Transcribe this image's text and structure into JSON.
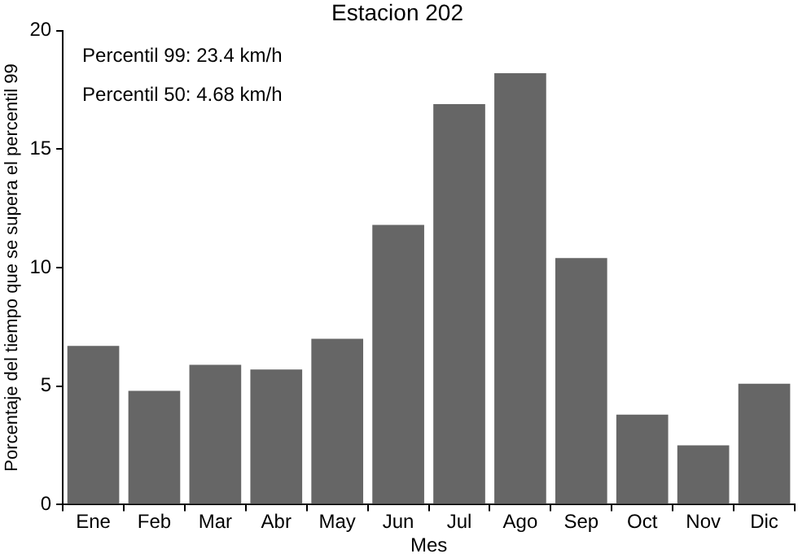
{
  "chart_data": {
    "type": "bar",
    "title": "Estacion 202",
    "xlabel": "Mes",
    "ylabel": "Porcentaje del tiempo que se supera el percentil 99",
    "categories": [
      "Ene",
      "Feb",
      "Mar",
      "Abr",
      "May",
      "Jun",
      "Jul",
      "Ago",
      "Sep",
      "Oct",
      "Nov",
      "Dic"
    ],
    "values": [
      6.7,
      4.8,
      5.9,
      5.7,
      7.0,
      11.8,
      16.9,
      18.2,
      10.4,
      3.8,
      2.5,
      5.1
    ],
    "color": "#666666",
    "ylim": [
      0,
      20
    ],
    "yticks": [
      0,
      5,
      10,
      15,
      20
    ],
    "grid": false,
    "legend": false,
    "annotations": [
      "Percentil 99: 23.4 km/h",
      "Percentil 50: 4.68 km/h"
    ]
  }
}
